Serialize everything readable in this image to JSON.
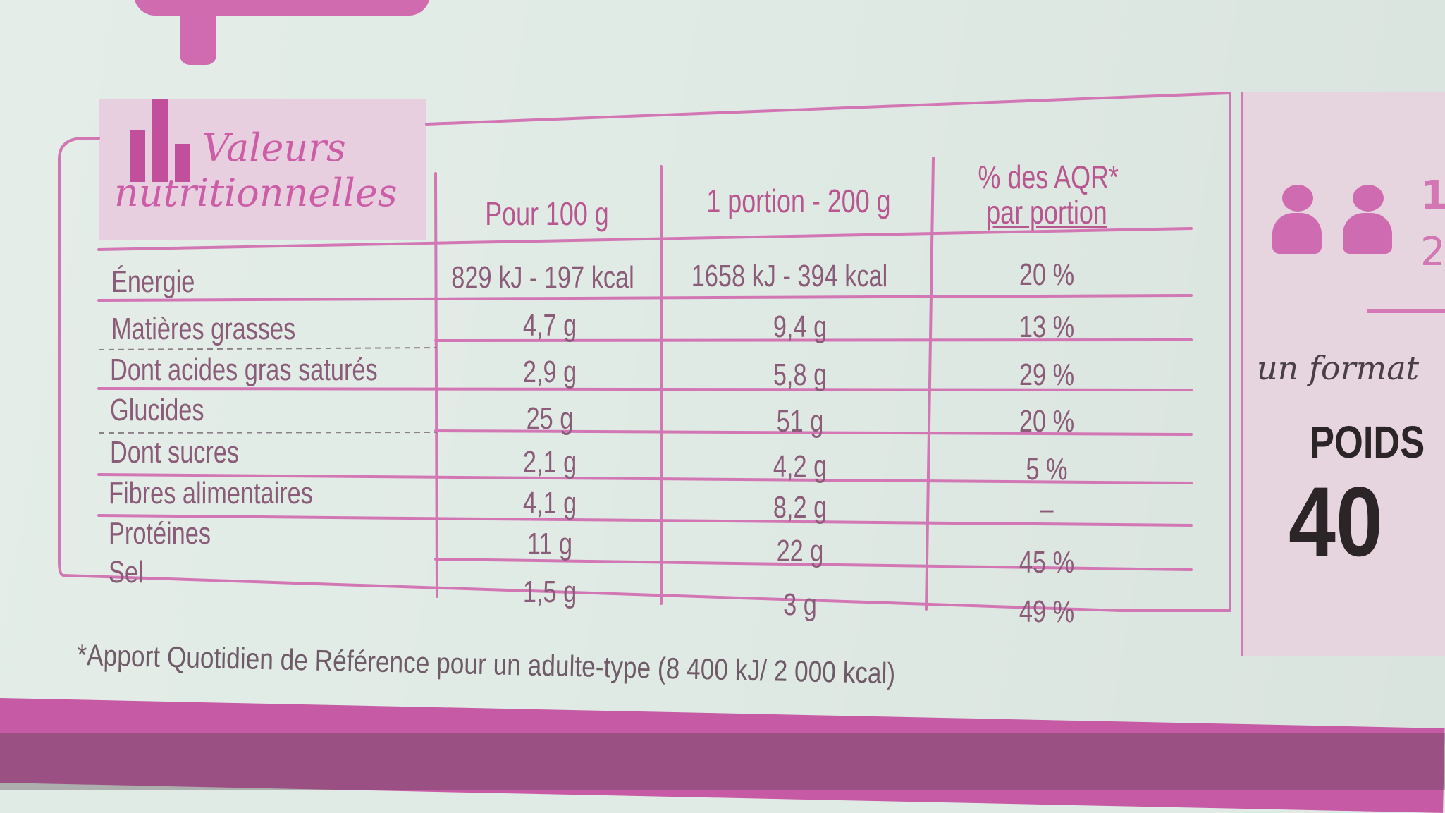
{
  "label": {
    "title_line1": "Valeurs",
    "title_line2": "nutritionnelles",
    "columns": [
      "Pour 100 g",
      "1 portion - 200 g",
      "% des AQR*",
      "par portion"
    ],
    "rows": [
      {
        "name": "Énergie",
        "per100": "829 kJ - 197 kcal",
        "portion": "1658 kJ - 394 kcal",
        "aqr": "20 %"
      },
      {
        "name": "Matières grasses",
        "per100": "4,7 g",
        "portion": "9,4 g",
        "aqr": "13 %"
      },
      {
        "name": "Dont acides gras saturés",
        "per100": "2,9 g",
        "portion": "5,8 g",
        "aqr": "29 %"
      },
      {
        "name": "Glucides",
        "per100": "25 g",
        "portion": "51 g",
        "aqr": "20 %"
      },
      {
        "name": "Dont sucres",
        "per100": "2,1 g",
        "portion": "4,2 g",
        "aqr": "5 %"
      },
      {
        "name": "Fibres alimentaires",
        "per100": "4,1 g",
        "portion": "8,2 g",
        "aqr": "–"
      },
      {
        "name": "Protéines",
        "per100": "11 g",
        "portion": "22 g",
        "aqr": "45 %"
      },
      {
        "name": "Sel",
        "per100": "1,5 g",
        "portion": "3 g",
        "aqr": "49 %"
      }
    ],
    "footnote": "*Apport Quotidien de Référence pour un adulte-type (8 400 kJ/ 2 000 kcal)"
  },
  "side_panel": {
    "count_line1": "1",
    "count_line2": "2",
    "format_text": "un format",
    "poids_label": "POIDS",
    "weight_partial": "40"
  },
  "colors": {
    "accent": "#cf6bb0",
    "text": "#8b5c79",
    "background": "#e1ebe5"
  },
  "icons": [
    "bar-chart-icon",
    "person-icon",
    "person-icon"
  ]
}
